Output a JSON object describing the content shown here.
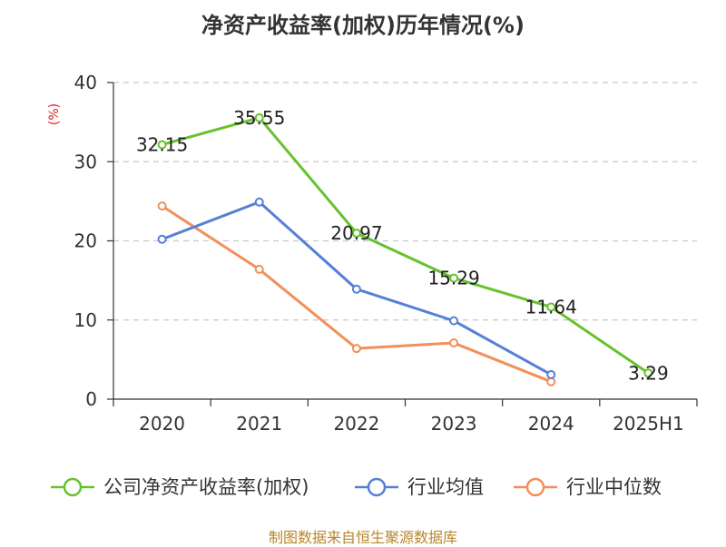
{
  "chart_data": {
    "type": "line",
    "title": "净资产收益率(加权)历年情况(%)",
    "ylabel": "(%)",
    "xlabel": "",
    "categories": [
      "2020",
      "2021",
      "2022",
      "2023",
      "2024",
      "2025H1"
    ],
    "ylim": [
      0,
      40
    ],
    "yticks": [
      0,
      10,
      20,
      30,
      40
    ],
    "grid": "horizontal-dashed",
    "legend": "bottom",
    "series": [
      {
        "name": "公司净资产收益率(加权)",
        "color": "#66c22d",
        "values": [
          32.15,
          35.55,
          20.97,
          15.29,
          11.64,
          3.29
        ],
        "labels": [
          "32.15",
          "35.55",
          "20.97",
          "15.29",
          "11.64",
          "3.29"
        ]
      },
      {
        "name": "行业均值",
        "color": "#5580d6",
        "values": [
          20.2,
          24.9,
          13.9,
          9.9,
          3.1,
          null
        ]
      },
      {
        "name": "行业中位数",
        "color": "#f28f5a",
        "values": [
          24.4,
          16.4,
          6.4,
          7.1,
          2.2,
          null
        ]
      }
    ]
  },
  "source": "制图数据来自恒生聚源数据库"
}
